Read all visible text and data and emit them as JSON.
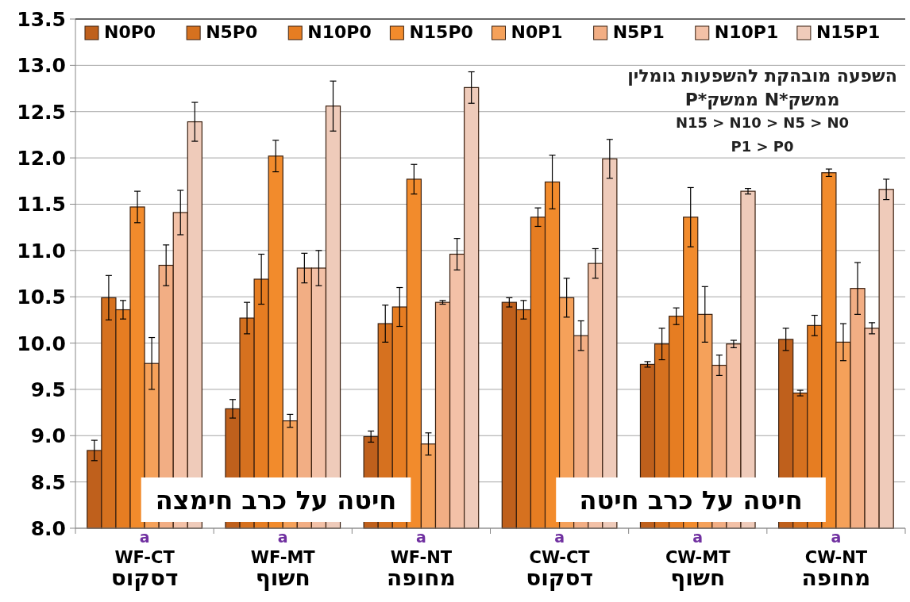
{
  "chart_data": {
    "type": "bar",
    "categories": [
      "WF-CT\nדסקוס",
      "WF-MT\nחשוף",
      "WF-NT\nמחופה",
      "CW-CT\nדסקוס",
      "CW-MT\nחשוף",
      "CW-NT\nמחופה"
    ],
    "series": [
      {
        "name": "N0P0",
        "color": "#bf601c",
        "values": [
          8.84,
          9.29,
          8.99,
          10.44,
          9.77,
          10.04
        ],
        "errors": [
          0.11,
          0.1,
          0.06,
          0.05,
          0.03,
          0.12
        ]
      },
      {
        "name": "N5P0",
        "color": "#d6711f",
        "values": [
          10.49,
          10.27,
          10.21,
          10.36,
          9.99,
          9.46
        ],
        "errors": [
          0.24,
          0.17,
          0.2,
          0.1,
          0.17,
          0.03
        ]
      },
      {
        "name": "N10P0",
        "color": "#e67d22",
        "values": [
          10.36,
          10.69,
          10.39,
          11.36,
          10.29,
          10.19
        ],
        "errors": [
          0.1,
          0.27,
          0.21,
          0.1,
          0.09,
          0.11
        ]
      },
      {
        "name": "N15P0",
        "color": "#f28b2c",
        "values": [
          11.47,
          12.02,
          11.77,
          11.74,
          11.36,
          11.84
        ],
        "errors": [
          0.17,
          0.17,
          0.16,
          0.29,
          0.32,
          0.04
        ]
      },
      {
        "name": "N0P1",
        "color": "#f5a15a",
        "values": [
          9.78,
          9.16,
          8.91,
          10.49,
          10.31,
          10.01
        ],
        "errors": [
          0.28,
          0.07,
          0.12,
          0.21,
          0.3,
          0.2
        ]
      },
      {
        "name": "N5P1",
        "color": "#f2ae84",
        "values": [
          10.84,
          10.81,
          10.44,
          10.08,
          9.76,
          10.59
        ],
        "errors": [
          0.22,
          0.16,
          0.02,
          0.16,
          0.11,
          0.28
        ]
      },
      {
        "name": "N10P1",
        "color": "#f3c1a7",
        "values": [
          11.41,
          10.81,
          10.96,
          10.86,
          9.99,
          10.16
        ],
        "errors": [
          0.24,
          0.19,
          0.17,
          0.16,
          0.04,
          0.06
        ]
      },
      {
        "name": "N15P1",
        "color": "#efcbba",
        "values": [
          12.39,
          12.56,
          12.76,
          11.99,
          11.64,
          11.66
        ],
        "errors": [
          0.21,
          0.27,
          0.17,
          0.21,
          0.03,
          0.11
        ]
      }
    ],
    "ylim": [
      8.0,
      13.5
    ],
    "yticks": [
      {
        "value": 8.0,
        "label": "8.0"
      },
      {
        "value": 8.5,
        "label": "8.5"
      },
      {
        "value": 9.0,
        "label": "9.0"
      },
      {
        "value": 9.5,
        "label": "9.5"
      },
      {
        "value": 10.0,
        "label": "10.0"
      },
      {
        "value": 10.5,
        "label": "10.5"
      },
      {
        "value": 11.0,
        "label": "11.0"
      },
      {
        "value": 11.5,
        "label": "11.5"
      },
      {
        "value": 12.0,
        "label": "12.0"
      },
      {
        "value": 12.5,
        "label": "12.5"
      },
      {
        "value": 13.0,
        "label": "13.0"
      },
      {
        "value": 13.5,
        "label": "13.5"
      }
    ],
    "grid": "y",
    "legend": "top",
    "annotations": [
      "השפעה מובהקת להשפעות גומלין",
      "ממשק*N ממשק*P",
      "N15 > N10 > N5 > N0",
      "P1 > P0",
      "חיטה על כרב חימצה",
      "חיטה על כרב חיטה",
      "a",
      "a",
      "a",
      "a",
      "a",
      "a"
    ]
  }
}
